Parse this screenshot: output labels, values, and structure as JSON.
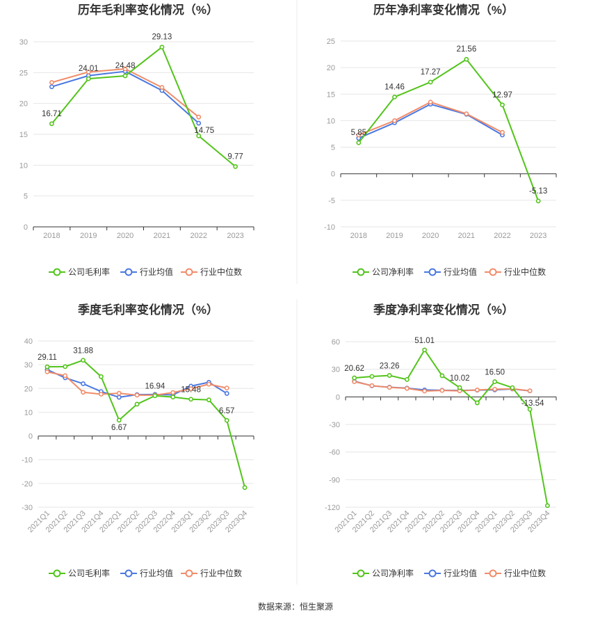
{
  "source_text": "数据来源：恒生聚源",
  "colors": {
    "company": "#52c41a",
    "industry_avg": "#4a78e0",
    "industry_median": "#f08c6a"
  },
  "chart_data": [
    {
      "type": "line",
      "title": "历年毛利率变化情况（%）",
      "categories": [
        "2018",
        "2019",
        "2020",
        "2021",
        "2022",
        "2023"
      ],
      "ylim": [
        0,
        30
      ],
      "yticks": [
        0,
        5,
        10,
        15,
        20,
        25,
        30
      ],
      "grid": true,
      "legend": "bottom",
      "series": [
        {
          "name": "公司毛利率",
          "key": "company",
          "values": [
            16.71,
            24.01,
            24.48,
            29.13,
            14.75,
            9.77
          ],
          "labels": [
            "16.71",
            "24.01",
            "24.48",
            "29.13",
            "14.75",
            "9.77"
          ]
        },
        {
          "name": "行业均值",
          "key": "industry_avg",
          "values": [
            22.7,
            24.5,
            25.2,
            22.1,
            16.8,
            null
          ]
        },
        {
          "name": "行业中位数",
          "key": "industry_median",
          "values": [
            23.4,
            25.1,
            25.6,
            22.6,
            17.8,
            null
          ]
        }
      ]
    },
    {
      "type": "line",
      "title": "历年净利率变化情况（%）",
      "categories": [
        "2018",
        "2019",
        "2020",
        "2021",
        "2022",
        "2023"
      ],
      "ylim": [
        -10,
        25
      ],
      "yticks": [
        -10,
        -5,
        0,
        5,
        10,
        15,
        20,
        25
      ],
      "grid": true,
      "legend": "bottom",
      "series": [
        {
          "name": "公司净利率",
          "key": "company",
          "values": [
            5.85,
            14.46,
            17.27,
            21.56,
            12.97,
            -5.13
          ],
          "labels": [
            "5.85",
            "14.46",
            "17.27",
            "21.56",
            "12.97",
            "-5.13"
          ]
        },
        {
          "name": "行业均值",
          "key": "industry_avg",
          "values": [
            6.7,
            9.6,
            13.1,
            11.2,
            7.3,
            null
          ]
        },
        {
          "name": "行业中位数",
          "key": "industry_median",
          "values": [
            7.3,
            10.0,
            13.5,
            11.3,
            7.8,
            null
          ]
        }
      ]
    },
    {
      "type": "line",
      "title": "季度毛利率变化情况（%）",
      "categories": [
        "2021Q1",
        "2021Q2",
        "2021Q3",
        "2021Q4",
        "2022Q1",
        "2022Q2",
        "2022Q3",
        "2022Q4",
        "2023Q1",
        "2023Q2",
        "2023Q3",
        "2023Q4"
      ],
      "ylim": [
        -30,
        40
      ],
      "yticks": [
        -30,
        -20,
        -10,
        0,
        10,
        20,
        30,
        40
      ],
      "grid": true,
      "legend": "bottom",
      "series": [
        {
          "name": "公司毛利率",
          "key": "company",
          "values": [
            29.11,
            29.2,
            31.88,
            25.0,
            6.67,
            13.4,
            16.94,
            16.4,
            15.48,
            15.2,
            6.57,
            -21.7
          ],
          "labels": [
            "29.11",
            "",
            "31.88",
            "",
            "6.67",
            "",
            "16.94",
            "",
            "15.48",
            "",
            "6.57",
            ""
          ]
        },
        {
          "name": "行业均值",
          "key": "industry_avg",
          "values": [
            27.9,
            24.5,
            22.0,
            18.7,
            16.3,
            17.4,
            17.5,
            17.3,
            21.0,
            22.6,
            17.9,
            null
          ]
        },
        {
          "name": "行业中位数",
          "key": "industry_median",
          "values": [
            27.0,
            25.4,
            18.4,
            17.6,
            18.0,
            17.2,
            17.2,
            18.3,
            19.9,
            21.8,
            20.2,
            null
          ]
        }
      ]
    },
    {
      "type": "line",
      "title": "季度净利率变化情况（%）",
      "categories": [
        "2021Q1",
        "2021Q2",
        "2021Q3",
        "2021Q4",
        "2022Q1",
        "2022Q2",
        "2022Q3",
        "2022Q4",
        "2023Q1",
        "2023Q2",
        "2023Q3",
        "2023Q4"
      ],
      "ylim": [
        -120,
        60
      ],
      "yticks": [
        -120,
        -90,
        -60,
        -30,
        0,
        30,
        60
      ],
      "grid": true,
      "legend": "bottom",
      "series": [
        {
          "name": "公司净利率",
          "key": "company",
          "values": [
            20.62,
            22.2,
            23.26,
            18.9,
            51.01,
            23.0,
            10.02,
            -6.5,
            16.5,
            10.0,
            -13.54,
            -118.2
          ],
          "labels": [
            "20.62",
            "",
            "23.26",
            "",
            "51.01",
            "",
            "10.02",
            "",
            "16.50",
            "",
            "-13.54",
            ""
          ]
        },
        {
          "name": "行业均值",
          "key": "industry_avg",
          "values": [
            17.0,
            12.0,
            10.5,
            9.5,
            7.5,
            7.2,
            7.0,
            7.3,
            7.6,
            8.6,
            6.5,
            null
          ]
        },
        {
          "name": "行业中位数",
          "key": "industry_median",
          "values": [
            16.5,
            12.2,
            10.3,
            9.2,
            6.3,
            7.0,
            6.5,
            7.5,
            8.3,
            8.8,
            6.6,
            null
          ]
        }
      ]
    }
  ]
}
